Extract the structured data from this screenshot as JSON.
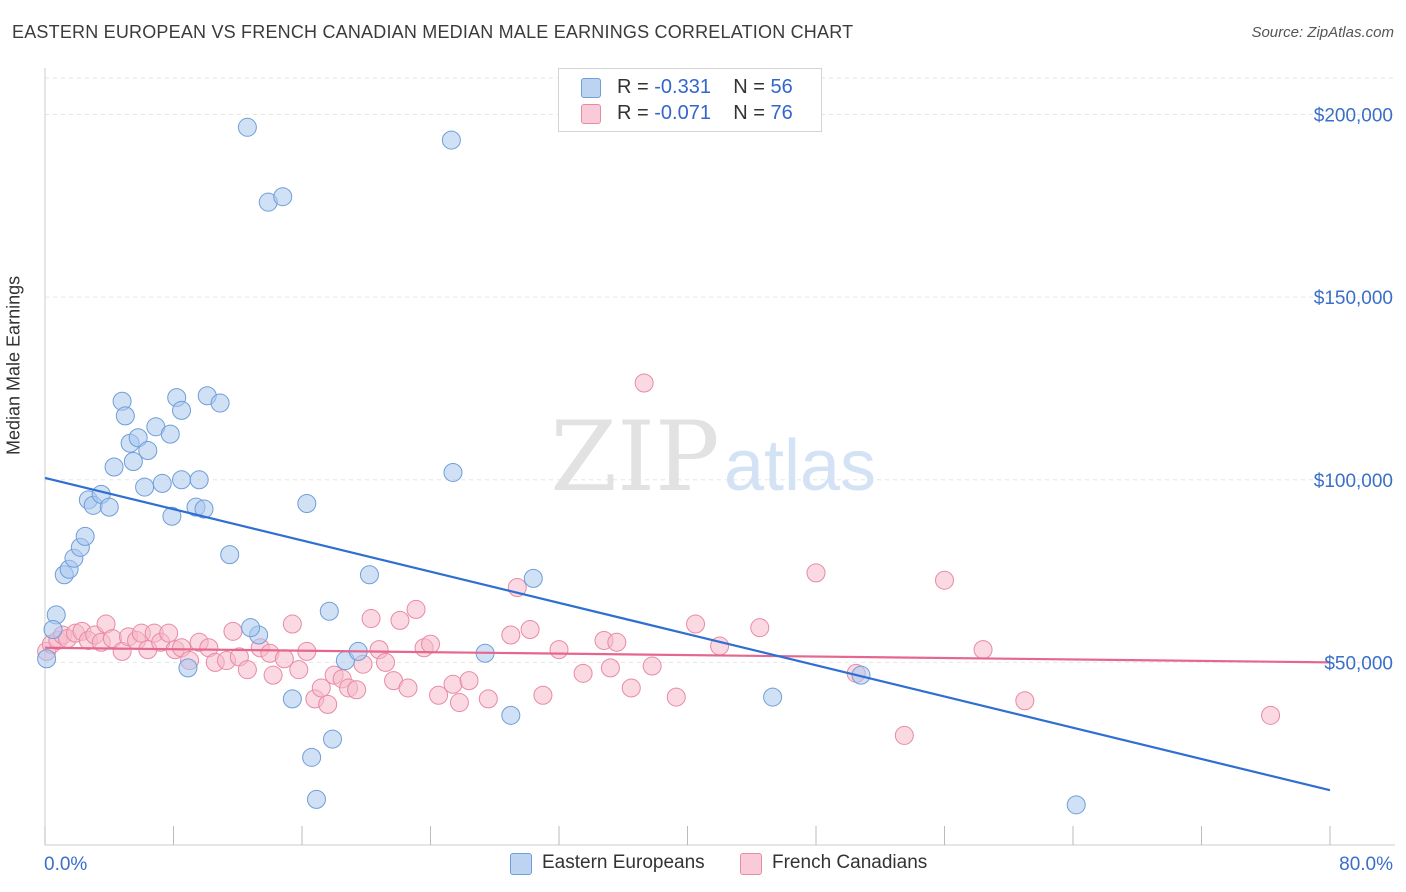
{
  "title": "EASTERN EUROPEAN VS FRENCH CANADIAN MEDIAN MALE EARNINGS CORRELATION CHART",
  "source": "Source: ZipAtlas.com",
  "watermark": {
    "zip": "ZIP",
    "atlas": "atlas"
  },
  "legend": {
    "r_label": "R =",
    "n_label": "N =",
    "rows": [
      {
        "r": "-0.331",
        "n": "56"
      },
      {
        "r": "-0.071",
        "n": "76"
      }
    ]
  },
  "colors": {
    "blue_fill": "#a9c8ef",
    "blue_stroke": "#6f9ed8",
    "blue_line": "#2e6fd1",
    "pink_fill": "#f6b9cb",
    "pink_stroke": "#e88aa6",
    "pink_line": "#e5678f",
    "axis_text": "#3a6fc9"
  },
  "chart_data": {
    "type": "scatter",
    "title": "EASTERN EUROPEAN VS FRENCH CANADIAN MEDIAN MALE EARNINGS CORRELATION CHART",
    "xlabel": "",
    "ylabel": "Median Male Earnings",
    "xlim": [
      0,
      80
    ],
    "ylim": [
      0,
      210000
    ],
    "x_tick_labels": [
      "0.0%",
      "80.0%"
    ],
    "y_ticks": [
      50000,
      100000,
      150000,
      200000
    ],
    "y_tick_labels": [
      "$50,000",
      "$100,000",
      "$150,000",
      "$200,000"
    ],
    "grid": true,
    "legend_position": "top-center",
    "series": [
      {
        "name": "Eastern Europeans",
        "r": -0.331,
        "n": 56,
        "trend": {
          "x": [
            0,
            80
          ],
          "y": [
            100500,
            15000
          ]
        },
        "points": [
          [
            0.1,
            51000
          ],
          [
            0.7,
            63000
          ],
          [
            0.5,
            59000
          ],
          [
            1.2,
            74000
          ],
          [
            1.5,
            75500
          ],
          [
            1.8,
            78500
          ],
          [
            2.2,
            81500
          ],
          [
            2.5,
            84500
          ],
          [
            2.7,
            94500
          ],
          [
            3.0,
            93000
          ],
          [
            3.5,
            96000
          ],
          [
            4.0,
            92500
          ],
          [
            4.3,
            103500
          ],
          [
            4.8,
            121500
          ],
          [
            5.0,
            117500
          ],
          [
            5.3,
            110000
          ],
          [
            5.5,
            105000
          ],
          [
            5.8,
            111500
          ],
          [
            6.2,
            98000
          ],
          [
            6.4,
            108000
          ],
          [
            6.9,
            114500
          ],
          [
            7.3,
            99000
          ],
          [
            7.8,
            112500
          ],
          [
            7.9,
            90000
          ],
          [
            8.2,
            122500
          ],
          [
            8.5,
            100000
          ],
          [
            8.9,
            48500
          ],
          [
            9.4,
            92500
          ],
          [
            9.6,
            100000
          ],
          [
            9.9,
            92000
          ],
          [
            10.1,
            123000
          ],
          [
            10.9,
            121000
          ],
          [
            11.5,
            79500
          ],
          [
            12.6,
            196500
          ],
          [
            13.9,
            176000
          ],
          [
            14.8,
            177500
          ],
          [
            13.3,
            57500
          ],
          [
            12.8,
            59500
          ],
          [
            15.4,
            40000
          ],
          [
            16.3,
            93500
          ],
          [
            16.6,
            24000
          ],
          [
            16.9,
            12500
          ],
          [
            17.7,
            64000
          ],
          [
            17.9,
            29000
          ],
          [
            18.7,
            50500
          ],
          [
            20.2,
            74000
          ],
          [
            25.3,
            193000
          ],
          [
            25.4,
            102000
          ],
          [
            27.4,
            52500
          ],
          [
            29.0,
            35500
          ],
          [
            30.4,
            73000
          ],
          [
            45.3,
            40500
          ],
          [
            50.8,
            46500
          ],
          [
            64.2,
            11000
          ],
          [
            8.5,
            119000
          ],
          [
            19.5,
            53000
          ]
        ]
      },
      {
        "name": "French Canadians",
        "r": -0.071,
        "n": 76,
        "trend": {
          "x": [
            0,
            80
          ],
          "y": [
            54000,
            50000
          ]
        },
        "points": [
          [
            0.1,
            53000
          ],
          [
            0.4,
            55000
          ],
          [
            0.8,
            56000
          ],
          [
            1.1,
            57500
          ],
          [
            1.4,
            56500
          ],
          [
            1.9,
            58000
          ],
          [
            2.3,
            58500
          ],
          [
            2.7,
            56000
          ],
          [
            3.1,
            57500
          ],
          [
            3.5,
            55500
          ],
          [
            3.8,
            60500
          ],
          [
            4.2,
            56500
          ],
          [
            4.8,
            53000
          ],
          [
            5.2,
            57000
          ],
          [
            5.7,
            56000
          ],
          [
            6.0,
            58000
          ],
          [
            6.4,
            53500
          ],
          [
            6.8,
            58000
          ],
          [
            7.2,
            55500
          ],
          [
            7.7,
            58000
          ],
          [
            8.1,
            53500
          ],
          [
            8.5,
            54000
          ],
          [
            9.0,
            50500
          ],
          [
            9.6,
            55500
          ],
          [
            10.2,
            54000
          ],
          [
            10.6,
            50000
          ],
          [
            11.3,
            50500
          ],
          [
            11.7,
            58500
          ],
          [
            12.1,
            51500
          ],
          [
            12.6,
            48000
          ],
          [
            13.4,
            54000
          ],
          [
            14.0,
            52500
          ],
          [
            14.2,
            46500
          ],
          [
            14.9,
            51000
          ],
          [
            15.4,
            60500
          ],
          [
            15.8,
            48000
          ],
          [
            16.3,
            53000
          ],
          [
            16.8,
            40000
          ],
          [
            17.2,
            43000
          ],
          [
            17.6,
            38500
          ],
          [
            18.0,
            46500
          ],
          [
            18.5,
            45500
          ],
          [
            18.9,
            43000
          ],
          [
            19.4,
            42500
          ],
          [
            19.8,
            49500
          ],
          [
            20.3,
            62000
          ],
          [
            20.8,
            53500
          ],
          [
            21.2,
            50000
          ],
          [
            21.7,
            45000
          ],
          [
            22.1,
            61500
          ],
          [
            22.6,
            43000
          ],
          [
            23.1,
            64500
          ],
          [
            23.6,
            54000
          ],
          [
            24.0,
            55000
          ],
          [
            24.5,
            41000
          ],
          [
            25.4,
            44000
          ],
          [
            25.8,
            39000
          ],
          [
            26.4,
            45000
          ],
          [
            27.6,
            40000
          ],
          [
            29.0,
            57500
          ],
          [
            29.4,
            70500
          ],
          [
            30.2,
            59000
          ],
          [
            31.0,
            41000
          ],
          [
            32.0,
            53500
          ],
          [
            33.5,
            47000
          ],
          [
            34.8,
            56000
          ],
          [
            35.2,
            48500
          ],
          [
            35.6,
            55500
          ],
          [
            36.5,
            43000
          ],
          [
            37.3,
            126500
          ],
          [
            37.8,
            49000
          ],
          [
            39.3,
            40500
          ],
          [
            40.5,
            60500
          ],
          [
            42.0,
            54500
          ],
          [
            44.5,
            59500
          ],
          [
            48.0,
            74500
          ]
        ],
        "extra_points": [
          [
            50.5,
            47000
          ],
          [
            53.5,
            30000
          ],
          [
            56.0,
            72500
          ],
          [
            58.4,
            53500
          ],
          [
            61.0,
            39500
          ],
          [
            76.3,
            35500
          ]
        ]
      }
    ]
  },
  "bottom_legend": [
    "Eastern Europeans",
    "French Canadians"
  ]
}
